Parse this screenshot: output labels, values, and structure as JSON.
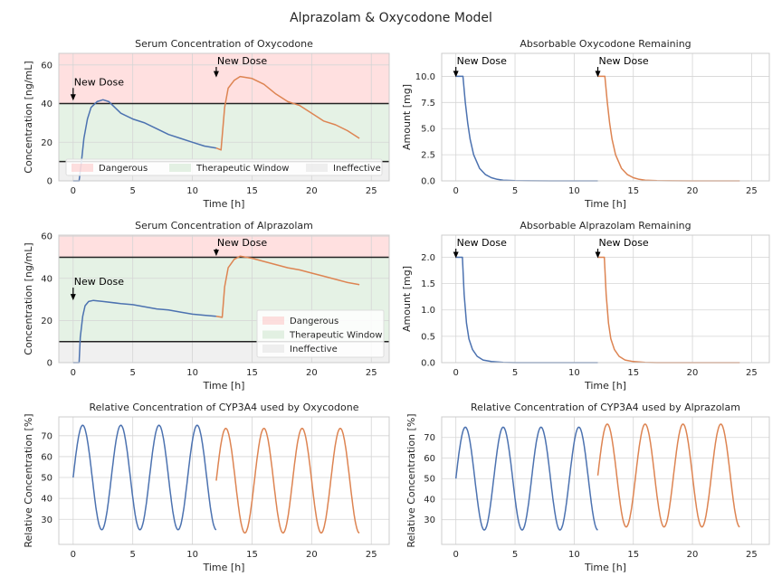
{
  "figure": {
    "title": "Alprazolam & Oxycodone Model"
  },
  "colors": {
    "series1": "#4c72b0",
    "series2": "#dd8452",
    "dangerous": "#ff9999",
    "therapeutic": "#99cc99",
    "ineffective": "#cccccc",
    "threshold_line": "#222222",
    "grid": "#d5d5d5",
    "axes_edge": "#cccccc",
    "plot_bg": "#ffffff"
  },
  "chart_data": [
    {
      "id": "oxy_serum",
      "type": "line",
      "title": "Serum Concentration of Oxycodone",
      "xlabel": "Time [h]",
      "ylabel": "Concentration [ng/mL]",
      "xlim": [
        -1.2,
        26.5
      ],
      "ylim": [
        0,
        66
      ],
      "xticks": [
        0,
        5,
        10,
        15,
        20,
        25
      ],
      "yticks": [
        0,
        20,
        40,
        60
      ],
      "ytick_labels": [
        "0",
        "20",
        "40",
        "60"
      ],
      "bands": [
        {
          "name": "Dangerous",
          "y0": 40,
          "y1": 66,
          "color": "#ff9999",
          "opacity": 0.3
        },
        {
          "name": "Therapeutic Window",
          "y0": 10,
          "y1": 40,
          "color": "#99cc99",
          "opacity": 0.25
        },
        {
          "name": "Ineffective",
          "y0": 0,
          "y1": 10,
          "color": "#cccccc",
          "opacity": 0.3
        }
      ],
      "hlines": [
        10,
        40
      ],
      "series": [
        {
          "x": [
            0,
            0.5,
            0.7,
            0.9,
            1.2,
            1.5,
            2.0,
            2.5,
            3.0,
            3.5,
            4.0,
            5.0,
            6.0,
            7.0,
            8.0,
            9.0,
            10.0,
            11.0,
            12.0
          ],
          "y": [
            0,
            0,
            10,
            22,
            32,
            38,
            41,
            42,
            41,
            38,
            35,
            32,
            30,
            27,
            24,
            22,
            20,
            18,
            17
          ]
        },
        {
          "x": [
            12.0,
            12.4,
            12.7,
            13.0,
            13.5,
            14.0,
            15.0,
            16.0,
            17.0,
            18.0,
            19.0,
            20.0,
            21.0,
            22.0,
            23.0,
            24.0
          ],
          "y": [
            17,
            16,
            38,
            48,
            52,
            54,
            53,
            50,
            45,
            41,
            39,
            35,
            31,
            29,
            26,
            22
          ]
        }
      ],
      "annotations": [
        {
          "text": "New Dose",
          "x": 0,
          "y": 42
        },
        {
          "text": "New Dose",
          "x": 12,
          "y": 54
        }
      ],
      "legend": {
        "position": "lower-center",
        "entries": [
          "Dangerous",
          "Therapeutic Window",
          "Ineffective"
        ]
      }
    },
    {
      "id": "oxy_absorb",
      "type": "line",
      "title": "Absorbable Oxycodone Remaining",
      "xlabel": "Time [h]",
      "ylabel": "Amount [mg]",
      "xlim": [
        -1.2,
        26.5
      ],
      "ylim": [
        0,
        12.2
      ],
      "xticks": [
        0,
        5,
        10,
        15,
        20,
        25
      ],
      "yticks": [
        0,
        2.5,
        5,
        7.5,
        10
      ],
      "ytick_labels": [
        "0.0",
        "2.5",
        "5.0",
        "7.5",
        "10.0"
      ],
      "series": [
        {
          "x": [
            0,
            0.6,
            0.8,
            1.0,
            1.2,
            1.5,
            2.0,
            2.5,
            3.0,
            3.5,
            4.0,
            5.0,
            6.0,
            8.0,
            10.0,
            12.0
          ],
          "y": [
            10,
            10,
            7.5,
            5.5,
            4,
            2.5,
            1.2,
            0.6,
            0.3,
            0.15,
            0.07,
            0.02,
            0.01,
            0,
            0,
            0
          ]
        },
        {
          "x": [
            12.0,
            12.6,
            12.8,
            13.0,
            13.2,
            13.5,
            14.0,
            14.5,
            15.0,
            15.5,
            16.0,
            17.0,
            18.0,
            20.0,
            22.0,
            24.0
          ],
          "y": [
            10,
            10,
            7.5,
            5.5,
            4,
            2.5,
            1.2,
            0.6,
            0.3,
            0.15,
            0.07,
            0.02,
            0.01,
            0,
            0,
            0
          ]
        }
      ],
      "annotations": [
        {
          "text": "New Dose",
          "x": 0,
          "y": 10
        },
        {
          "text": "New Dose",
          "x": 12,
          "y": 10
        }
      ]
    },
    {
      "id": "alp_serum",
      "type": "line",
      "title": "Serum Concentration of Alprazolam",
      "xlabel": "Time [h]",
      "ylabel": "Concentration [ng/mL]",
      "xlim": [
        -1.2,
        26.5
      ],
      "ylim": [
        0,
        60.5
      ],
      "xticks": [
        0,
        5,
        10,
        15,
        20,
        25
      ],
      "yticks": [
        0,
        20,
        40,
        60
      ],
      "ytick_labels": [
        "0",
        "20",
        "40",
        "60"
      ],
      "bands": [
        {
          "name": "Dangerous",
          "y0": 50,
          "y1": 60.5,
          "color": "#ff9999",
          "opacity": 0.3
        },
        {
          "name": "Therapeutic Window",
          "y0": 10,
          "y1": 50,
          "color": "#99cc99",
          "opacity": 0.25
        },
        {
          "name": "Ineffective",
          "y0": 0,
          "y1": 10,
          "color": "#cccccc",
          "opacity": 0.3
        }
      ],
      "hlines": [
        10,
        50
      ],
      "series": [
        {
          "x": [
            0,
            0.5,
            0.6,
            0.8,
            1.0,
            1.3,
            1.7,
            2.5,
            4.0,
            5.0,
            6.0,
            7.0,
            8.0,
            9.0,
            10.0,
            11.0,
            12.0
          ],
          "y": [
            0,
            0,
            12,
            22,
            27,
            29,
            29.5,
            29,
            28,
            27.5,
            26.5,
            25.5,
            25,
            24,
            23,
            22.5,
            22
          ]
        },
        {
          "x": [
            12.0,
            12.5,
            12.7,
            13.0,
            13.5,
            14.0,
            15.0,
            16.0,
            17.0,
            18.0,
            19.0,
            20.0,
            21.0,
            22.0,
            23.0,
            24.0
          ],
          "y": [
            22,
            21.5,
            36,
            45,
            49,
            50.5,
            49.5,
            48,
            46.5,
            45,
            44,
            42.5,
            41,
            39.5,
            38,
            37
          ]
        }
      ],
      "annotations": [
        {
          "text": "New Dose",
          "x": 0,
          "y": 30
        },
        {
          "text": "New Dose",
          "x": 12,
          "y": 51
        }
      ],
      "legend": {
        "position": "lower-right",
        "entries": [
          "Dangerous",
          "Therapeutic Window",
          "Ineffective"
        ]
      }
    },
    {
      "id": "alp_absorb",
      "type": "line",
      "title": "Absorbable Alprazolam Remaining",
      "xlabel": "Time [h]",
      "ylabel": "Amount [mg]",
      "xlim": [
        -1.2,
        26.5
      ],
      "ylim": [
        0,
        2.42
      ],
      "xticks": [
        0,
        5,
        10,
        15,
        20,
        25
      ],
      "yticks": [
        0,
        0.5,
        1.0,
        1.5,
        2.0
      ],
      "ytick_labels": [
        "0.0",
        "0.5",
        "1.0",
        "1.5",
        "2.0"
      ],
      "series": [
        {
          "x": [
            0,
            0.55,
            0.7,
            0.9,
            1.1,
            1.4,
            1.8,
            2.3,
            3.0,
            4.0,
            5.0,
            8.0,
            12.0
          ],
          "y": [
            2,
            2,
            1.3,
            0.75,
            0.45,
            0.25,
            0.12,
            0.05,
            0.02,
            0.005,
            0,
            0,
            0
          ]
        },
        {
          "x": [
            12.0,
            12.55,
            12.7,
            12.9,
            13.1,
            13.4,
            13.8,
            14.3,
            15.0,
            16.0,
            17.0,
            20.0,
            24.0
          ],
          "y": [
            2,
            2,
            1.3,
            0.75,
            0.45,
            0.25,
            0.12,
            0.05,
            0.02,
            0.005,
            0,
            0,
            0
          ]
        }
      ],
      "annotations": [
        {
          "text": "New Dose",
          "x": 0,
          "y": 2
        },
        {
          "text": "New Dose",
          "x": 12,
          "y": 2
        }
      ]
    },
    {
      "id": "cyp_oxy",
      "type": "line",
      "title": "Relative Concentration of CYP3A4 used by Oxycodone",
      "xlabel": "Time [h]",
      "ylabel": "Relative Concentration [%]",
      "xlim": [
        -1.2,
        26.5
      ],
      "ylim": [
        18,
        79
      ],
      "xticks": [
        0,
        5,
        10,
        15,
        20,
        25
      ],
      "yticks": [
        30,
        40,
        50,
        60,
        70
      ],
      "ytick_labels": [
        "30",
        "40",
        "50",
        "60",
        "70"
      ],
      "series": [
        {
          "function": "sine",
          "x_start": 0,
          "x_end": 12,
          "mean": 50,
          "amplitude": 25,
          "period": 3.2,
          "phase": 0
        },
        {
          "function": "sine",
          "x_start": 12,
          "x_end": 24,
          "mean": 48.5,
          "amplitude": 25,
          "period": 3.2,
          "phase": 0
        }
      ]
    },
    {
      "id": "cyp_alp",
      "type": "line",
      "title": "Relative Concentration of CYP3A4 used by Alprazolam",
      "xlabel": "Time [h]",
      "ylabel": "Relative Concentration [%]",
      "xlim": [
        -1.2,
        26.5
      ],
      "ylim": [
        18,
        80
      ],
      "xticks": [
        0,
        5,
        10,
        15,
        20,
        25
      ],
      "yticks": [
        30,
        40,
        50,
        60,
        70
      ],
      "ytick_labels": [
        "30",
        "40",
        "50",
        "60",
        "70"
      ],
      "series": [
        {
          "function": "sine",
          "x_start": 0,
          "x_end": 12,
          "mean": 50,
          "amplitude": 25,
          "period": 3.2,
          "phase": 0
        },
        {
          "function": "sine",
          "x_start": 12,
          "x_end": 24,
          "mean": 51.5,
          "amplitude": 25,
          "period": 3.2,
          "phase": 0
        }
      ]
    }
  ]
}
